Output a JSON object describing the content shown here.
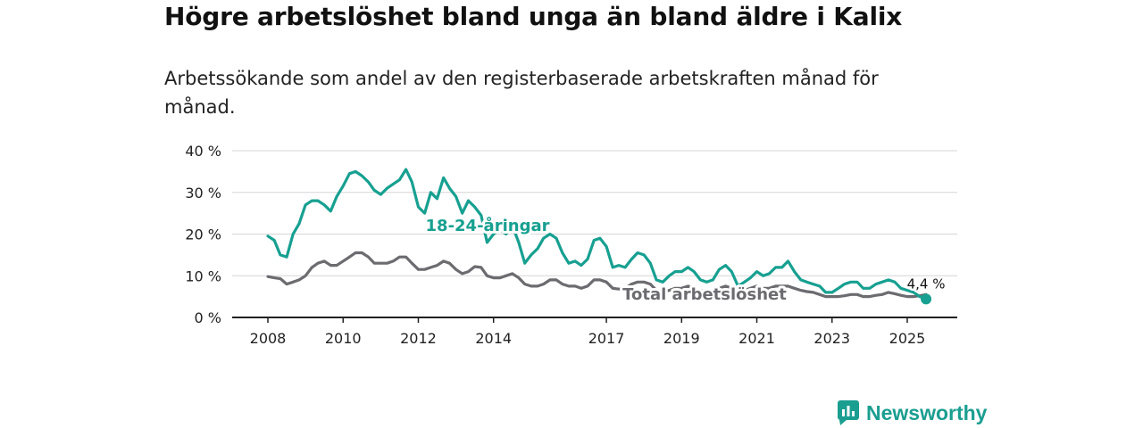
{
  "title": "Högre arbetslöshet bland unga än bland äldre i Kalix",
  "subtitle": "Arbetssökande som andel av den registerbaserade arbetskraften månad för månad.",
  "brand": "Newsworthy",
  "colors": {
    "youth": "#17a091",
    "total": "#6b6b70",
    "grid": "#d6d6d6",
    "axis": "#222222",
    "brand": "#1a9e90"
  },
  "chart_data": {
    "type": "line",
    "title": "Högre arbetslöshet bland unga än bland äldre i Kalix",
    "subtitle": "Arbetssökande som andel av den registerbaserade arbetskraften månad för månad.",
    "xlabel": "",
    "ylabel": "",
    "x_ticks": [
      "2008",
      "2010",
      "2012",
      "2014",
      "2017",
      "2019",
      "2021",
      "2023",
      "2025"
    ],
    "y_ticks": [
      "0 %",
      "10 %",
      "20 %",
      "30 %",
      "40 %"
    ],
    "xlim": [
      2008,
      2026
    ],
    "ylim": [
      0,
      40
    ],
    "grid": true,
    "end_label": "4,4 %",
    "series": [
      {
        "name": "18-24-åringar",
        "points": [
          [
            2008.0,
            19.5
          ],
          [
            2008.17,
            18.5
          ],
          [
            2008.33,
            15
          ],
          [
            2008.5,
            14.5
          ],
          [
            2008.67,
            20
          ],
          [
            2008.83,
            22.5
          ],
          [
            2009.0,
            27
          ],
          [
            2009.17,
            28
          ],
          [
            2009.33,
            28
          ],
          [
            2009.5,
            27
          ],
          [
            2009.67,
            25.5
          ],
          [
            2009.83,
            29
          ],
          [
            2010.0,
            31.5
          ],
          [
            2010.17,
            34.5
          ],
          [
            2010.33,
            35
          ],
          [
            2010.5,
            34
          ],
          [
            2010.67,
            32.5
          ],
          [
            2010.83,
            30.5
          ],
          [
            2011.0,
            29.5
          ],
          [
            2011.17,
            31
          ],
          [
            2011.33,
            32
          ],
          [
            2011.5,
            33
          ],
          [
            2011.67,
            35.5
          ],
          [
            2011.83,
            32.5
          ],
          [
            2012.0,
            26.5
          ],
          [
            2012.17,
            25
          ],
          [
            2012.33,
            30
          ],
          [
            2012.5,
            28.5
          ],
          [
            2012.67,
            33.5
          ],
          [
            2012.83,
            31
          ],
          [
            2013.0,
            29
          ],
          [
            2013.17,
            25
          ],
          [
            2013.33,
            28
          ],
          [
            2013.5,
            26.5
          ],
          [
            2013.67,
            24.5
          ],
          [
            2013.83,
            18
          ],
          [
            2014.0,
            20
          ],
          [
            2014.17,
            21
          ],
          [
            2014.33,
            20
          ],
          [
            2014.5,
            22
          ],
          [
            2014.67,
            18
          ],
          [
            2014.83,
            13
          ],
          [
            2015.0,
            15
          ],
          [
            2015.17,
            16.5
          ],
          [
            2015.33,
            19
          ],
          [
            2015.5,
            20
          ],
          [
            2015.67,
            19
          ],
          [
            2015.83,
            15.5
          ],
          [
            2016.0,
            13
          ],
          [
            2016.17,
            13.5
          ],
          [
            2016.33,
            12.5
          ],
          [
            2016.5,
            14
          ],
          [
            2016.67,
            18.5
          ],
          [
            2016.83,
            19
          ],
          [
            2017.0,
            17
          ],
          [
            2017.17,
            12
          ],
          [
            2017.33,
            12.5
          ],
          [
            2017.5,
            12
          ],
          [
            2017.67,
            14
          ],
          [
            2017.83,
            15.5
          ],
          [
            2018.0,
            15
          ],
          [
            2018.17,
            13
          ],
          [
            2018.33,
            9
          ],
          [
            2018.5,
            8.5
          ],
          [
            2018.67,
            10
          ],
          [
            2018.83,
            11
          ],
          [
            2019.0,
            11
          ],
          [
            2019.17,
            12
          ],
          [
            2019.33,
            11
          ],
          [
            2019.5,
            9
          ],
          [
            2019.67,
            8.5
          ],
          [
            2019.83,
            9
          ],
          [
            2020.0,
            11.5
          ],
          [
            2020.17,
            12.5
          ],
          [
            2020.33,
            11
          ],
          [
            2020.5,
            7.5
          ],
          [
            2020.67,
            8.5
          ],
          [
            2020.83,
            9.5
          ],
          [
            2021.0,
            11
          ],
          [
            2021.17,
            10
          ],
          [
            2021.33,
            10.5
          ],
          [
            2021.5,
            12
          ],
          [
            2021.67,
            12
          ],
          [
            2021.83,
            13.5
          ],
          [
            2022.0,
            11
          ],
          [
            2022.17,
            9
          ],
          [
            2022.33,
            8.5
          ],
          [
            2022.5,
            8
          ],
          [
            2022.67,
            7.5
          ],
          [
            2022.83,
            6
          ],
          [
            2023.0,
            6
          ],
          [
            2023.17,
            7
          ],
          [
            2023.33,
            8
          ],
          [
            2023.5,
            8.5
          ],
          [
            2023.67,
            8.5
          ],
          [
            2023.83,
            7
          ],
          [
            2024.0,
            7
          ],
          [
            2024.17,
            8
          ],
          [
            2024.33,
            8.5
          ],
          [
            2024.5,
            9
          ],
          [
            2024.67,
            8.5
          ],
          [
            2024.83,
            7
          ],
          [
            2025.0,
            6.5
          ],
          [
            2025.17,
            6
          ],
          [
            2025.33,
            5
          ],
          [
            2025.5,
            4.4
          ]
        ]
      },
      {
        "name": "Total arbetslöshet",
        "points": [
          [
            2008.0,
            9.8
          ],
          [
            2008.17,
            9.5
          ],
          [
            2008.33,
            9.3
          ],
          [
            2008.5,
            8
          ],
          [
            2008.67,
            8.5
          ],
          [
            2008.83,
            9
          ],
          [
            2009.0,
            10
          ],
          [
            2009.17,
            12
          ],
          [
            2009.33,
            13
          ],
          [
            2009.5,
            13.5
          ],
          [
            2009.67,
            12.5
          ],
          [
            2009.83,
            12.5
          ],
          [
            2010.0,
            13.5
          ],
          [
            2010.17,
            14.5
          ],
          [
            2010.33,
            15.5
          ],
          [
            2010.5,
            15.5
          ],
          [
            2010.67,
            14.5
          ],
          [
            2010.83,
            13
          ],
          [
            2011.0,
            13
          ],
          [
            2011.17,
            13
          ],
          [
            2011.33,
            13.5
          ],
          [
            2011.5,
            14.5
          ],
          [
            2011.67,
            14.5
          ],
          [
            2011.83,
            13
          ],
          [
            2012.0,
            11.5
          ],
          [
            2012.17,
            11.5
          ],
          [
            2012.33,
            12
          ],
          [
            2012.5,
            12.5
          ],
          [
            2012.67,
            13.5
          ],
          [
            2012.83,
            13
          ],
          [
            2013.0,
            11.5
          ],
          [
            2013.17,
            10.5
          ],
          [
            2013.33,
            11
          ],
          [
            2013.5,
            12.2
          ],
          [
            2013.67,
            12
          ],
          [
            2013.83,
            10
          ],
          [
            2014.0,
            9.5
          ],
          [
            2014.17,
            9.5
          ],
          [
            2014.33,
            10
          ],
          [
            2014.5,
            10.5
          ],
          [
            2014.67,
            9.5
          ],
          [
            2014.83,
            8
          ],
          [
            2015.0,
            7.5
          ],
          [
            2015.17,
            7.5
          ],
          [
            2015.33,
            8
          ],
          [
            2015.5,
            9
          ],
          [
            2015.67,
            9
          ],
          [
            2015.83,
            8
          ],
          [
            2016.0,
            7.5
          ],
          [
            2016.17,
            7.5
          ],
          [
            2016.33,
            7
          ],
          [
            2016.5,
            7.5
          ],
          [
            2016.67,
            9
          ],
          [
            2016.83,
            9
          ],
          [
            2017.0,
            8.5
          ],
          [
            2017.17,
            7
          ],
          [
            2017.33,
            6.8
          ],
          [
            2017.5,
            7
          ],
          [
            2017.67,
            8
          ],
          [
            2017.83,
            8.5
          ],
          [
            2018.0,
            8.5
          ],
          [
            2018.17,
            8
          ],
          [
            2018.33,
            6.5
          ],
          [
            2018.5,
            6
          ],
          [
            2018.67,
            6.5
          ],
          [
            2018.83,
            7
          ],
          [
            2019.0,
            7
          ],
          [
            2019.17,
            7.5
          ],
          [
            2019.33,
            7
          ],
          [
            2019.5,
            6.5
          ],
          [
            2019.67,
            6
          ],
          [
            2019.83,
            6.2
          ],
          [
            2020.0,
            7
          ],
          [
            2020.17,
            7.5
          ],
          [
            2020.33,
            7
          ],
          [
            2020.5,
            6.2
          ],
          [
            2020.67,
            6.5
          ],
          [
            2020.83,
            7
          ],
          [
            2021.0,
            7.5
          ],
          [
            2021.17,
            7
          ],
          [
            2021.33,
            7
          ],
          [
            2021.5,
            7.5
          ],
          [
            2021.67,
            7.5
          ],
          [
            2021.83,
            7.5
          ],
          [
            2022.0,
            7
          ],
          [
            2022.17,
            6.5
          ],
          [
            2022.33,
            6.2
          ],
          [
            2022.5,
            6
          ],
          [
            2022.67,
            5.5
          ],
          [
            2022.83,
            5
          ],
          [
            2023.0,
            5
          ],
          [
            2023.17,
            5
          ],
          [
            2023.33,
            5.2
          ],
          [
            2023.5,
            5.5
          ],
          [
            2023.67,
            5.5
          ],
          [
            2023.83,
            5
          ],
          [
            2024.0,
            5
          ],
          [
            2024.17,
            5.3
          ],
          [
            2024.33,
            5.5
          ],
          [
            2024.5,
            6
          ],
          [
            2024.67,
            5.7
          ],
          [
            2024.83,
            5.3
          ],
          [
            2025.0,
            5
          ],
          [
            2025.17,
            5
          ],
          [
            2025.33,
            5.2
          ],
          [
            2025.5,
            5.5
          ]
        ]
      }
    ]
  }
}
